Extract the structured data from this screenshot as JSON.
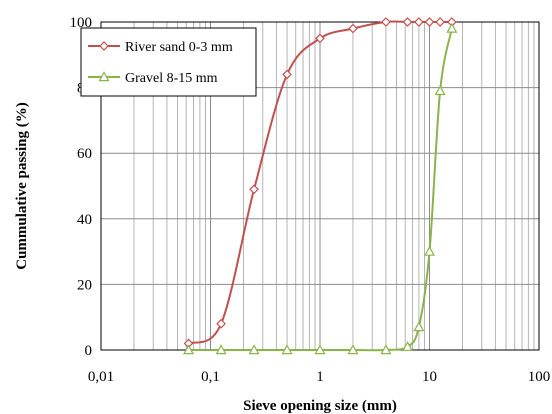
{
  "chart_data": {
    "type": "line",
    "xlabel": "Sieve opening size (mm)",
    "ylabel": "Cummulative passing (%)",
    "x_scale": "log",
    "xlim": [
      0.01,
      100
    ],
    "ylim": [
      0,
      100
    ],
    "x_ticks": [
      0.01,
      0.1,
      1,
      10,
      100
    ],
    "x_tick_labels": [
      "0,01",
      "0,1",
      "1",
      "10",
      "100"
    ],
    "y_ticks": [
      0,
      20,
      40,
      60,
      80,
      100
    ],
    "y_tick_labels": [
      "0",
      "20",
      "40",
      "60",
      "80",
      "100"
    ],
    "grid": true,
    "legend_position": "top-left",
    "series": [
      {
        "name": "River sand 0-3 mm",
        "color": "#c0504d",
        "marker": "diamond",
        "x": [
          0.063,
          0.125,
          0.25,
          0.5,
          1,
          2,
          4,
          6.3,
          8,
          10,
          12.5,
          16
        ],
        "y": [
          2,
          8,
          49,
          84,
          95,
          98,
          100,
          100,
          100,
          100,
          100,
          100
        ]
      },
      {
        "name": "Gravel 8-15 mm",
        "color": "#8ab34a",
        "marker": "triangle",
        "x": [
          0.063,
          0.125,
          0.25,
          0.5,
          1,
          2,
          4,
          6.3,
          8,
          10,
          12.5,
          16
        ],
        "y": [
          0,
          0,
          0,
          0,
          0,
          0,
          0,
          1,
          7,
          30,
          79,
          98
        ]
      }
    ]
  }
}
